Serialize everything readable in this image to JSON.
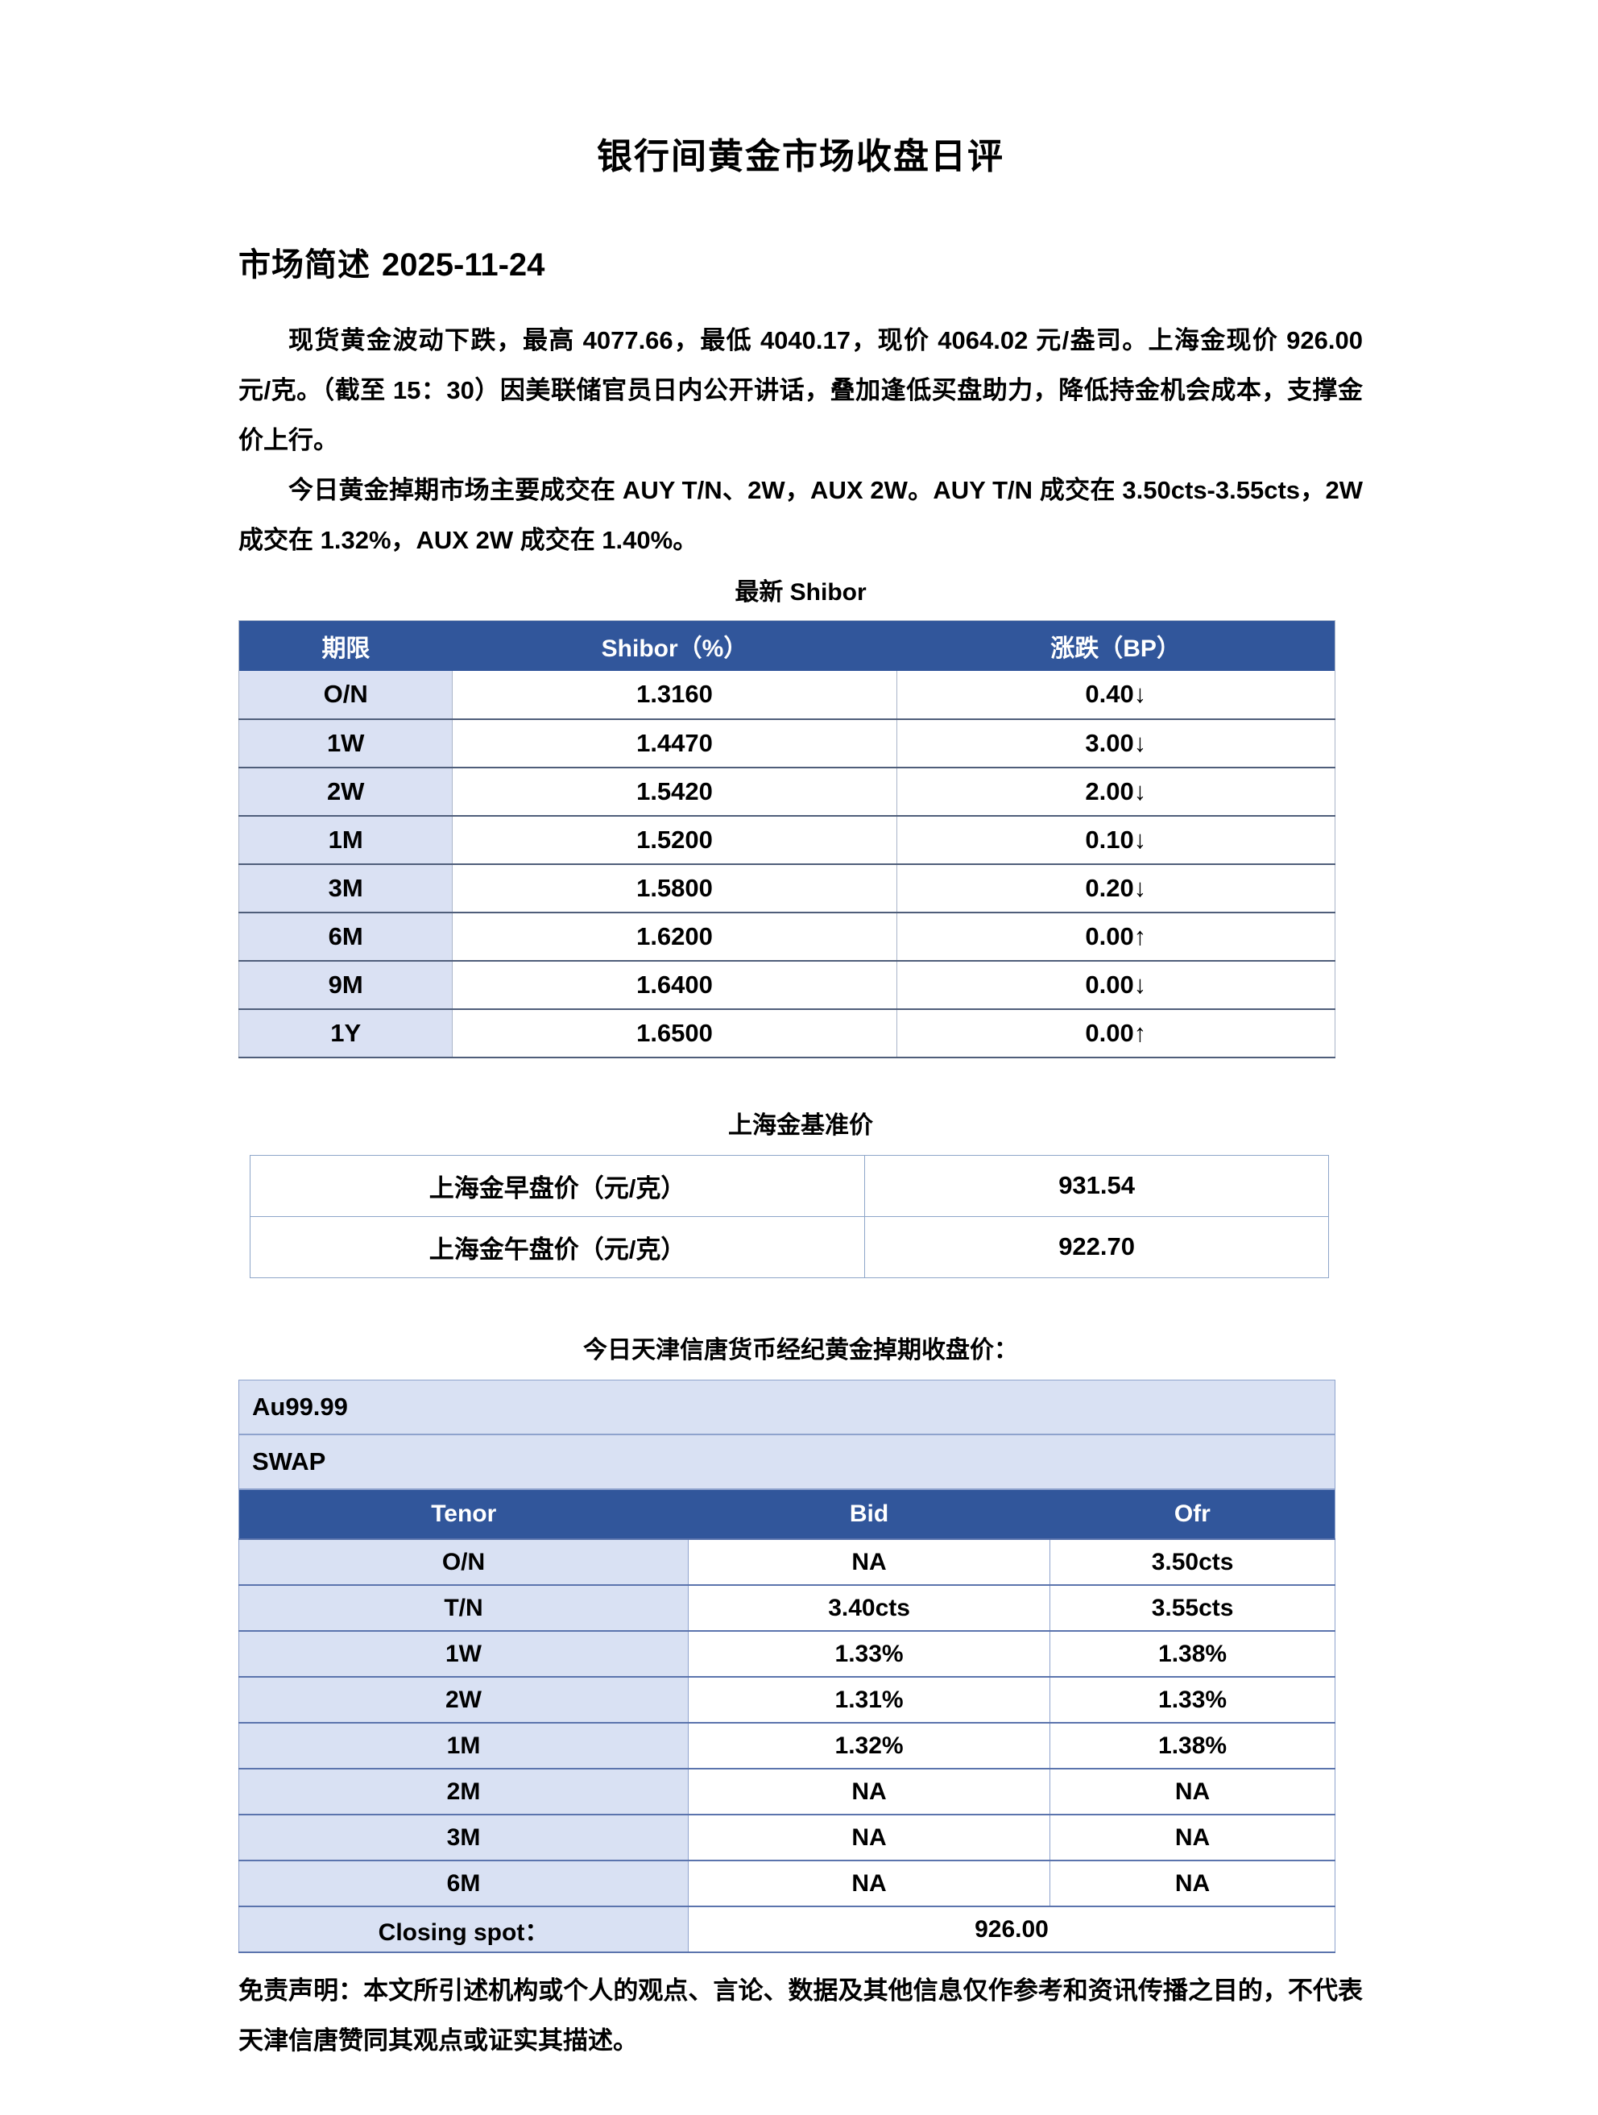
{
  "doc": {
    "title": "银行间黄金市场收盘日评",
    "section_heading": "市场简述",
    "date": "2025-11-24",
    "paragraphs": [
      "现货黄金波动下跌，最高 4077.66，最低 4040.17，现价 4064.02 元/盎司。上海金现价 926.00 元/克。（截至 15：30）因美联储官员日内公开讲话，叠加逢低买盘助力，降低持金机会成本，支撑金价上行。",
      "今日黄金掉期市场主要成交在 AUY T/N、2W，AUX 2W。AUY T/N 成交在 3.50cts-3.55cts，2W 成交在 1.32%，AUX 2W 成交在 1.40%。"
    ],
    "disclaimer": "免责声明：本文所引述机构或个人的观点、言论、数据及其他信息仅作参考和资讯传播之目的，不代表天津信唐赞同其观点或证实其描述。"
  },
  "colors": {
    "table_header_blue": "#31569B",
    "light_row_blue": "#D9E1F3",
    "text": "#000000"
  },
  "shibor": {
    "caption": "最新 Shibor",
    "headers": [
      "期限",
      "Shibor（%）",
      "涨跌（BP）"
    ],
    "rows": [
      {
        "tenor": "O/N",
        "rate": "1.3160",
        "change": "0.40",
        "arrow": "↓"
      },
      {
        "tenor": "1W",
        "rate": "1.4470",
        "change": "3.00",
        "arrow": "↓"
      },
      {
        "tenor": "2W",
        "rate": "1.5420",
        "change": "2.00",
        "arrow": "↓"
      },
      {
        "tenor": "1M",
        "rate": "1.5200",
        "change": "0.10",
        "arrow": "↓"
      },
      {
        "tenor": "3M",
        "rate": "1.5800",
        "change": "0.20",
        "arrow": "↓"
      },
      {
        "tenor": "6M",
        "rate": "1.6200",
        "change": "0.00",
        "arrow": "↑"
      },
      {
        "tenor": "9M",
        "rate": "1.6400",
        "change": "0.00",
        "arrow": "↓"
      },
      {
        "tenor": "1Y",
        "rate": "1.6500",
        "change": "0.00",
        "arrow": "↑"
      }
    ]
  },
  "benchmark": {
    "caption": "上海金基准价",
    "rows": [
      {
        "label": "上海金早盘价（元/克）",
        "value": "931.54"
      },
      {
        "label": "上海金午盘价（元/克）",
        "value": "922.70"
      }
    ]
  },
  "swap": {
    "caption": "今日天津信唐货币经纪黄金掉期收盘价：",
    "group1": "Au99.99",
    "group2": "SWAP",
    "headers": [
      "Tenor",
      "Bid",
      "Ofr"
    ],
    "rows": [
      {
        "tenor": "O/N",
        "bid": "NA",
        "ofr": "3.50cts"
      },
      {
        "tenor": "T/N",
        "bid": "3.40cts",
        "ofr": "3.55cts"
      },
      {
        "tenor": "1W",
        "bid": "1.33%",
        "ofr": "1.38%"
      },
      {
        "tenor": "2W",
        "bid": "1.31%",
        "ofr": "1.33%"
      },
      {
        "tenor": "1M",
        "bid": "1.32%",
        "ofr": "1.38%"
      },
      {
        "tenor": "2M",
        "bid": "NA",
        "ofr": "NA"
      },
      {
        "tenor": "3M",
        "bid": "NA",
        "ofr": "NA"
      },
      {
        "tenor": "6M",
        "bid": "NA",
        "ofr": "NA"
      }
    ],
    "closing_label": "Closing spot：",
    "closing_value": "926.00"
  }
}
